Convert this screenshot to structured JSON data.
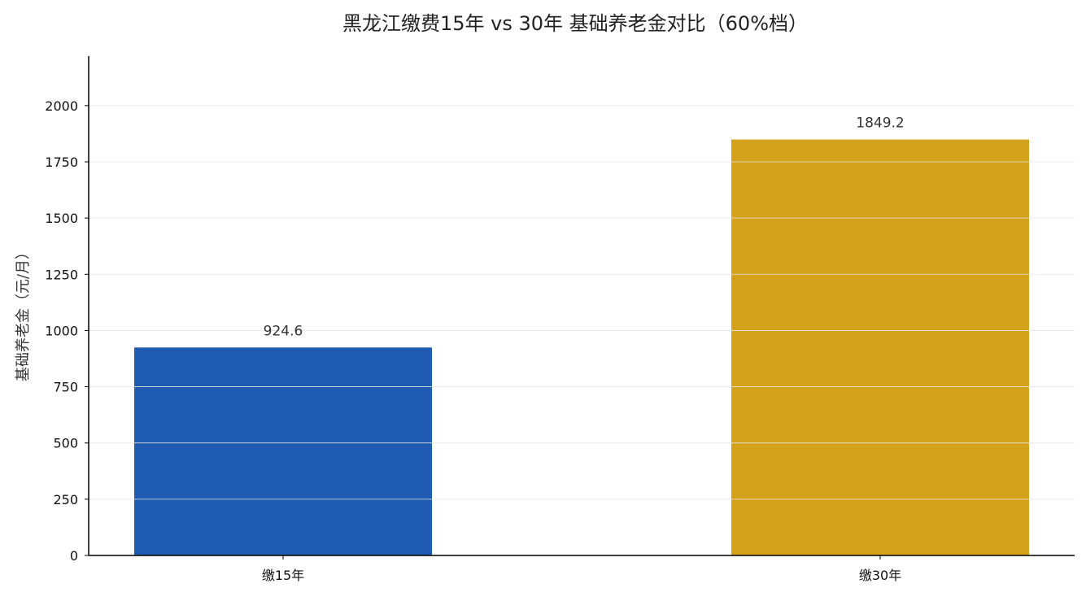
{
  "chart_data": {
    "type": "bar",
    "title": "黑龙江缴费15年 vs 30年 基础养老金对比（60%档）",
    "xlabel": "",
    "ylabel": "基础养老金（元/月）",
    "categories": [
      "缴15年",
      "缴30年"
    ],
    "values": [
      924.6,
      1849.2
    ],
    "value_labels": [
      "924.6",
      "1849.2"
    ],
    "colors": [
      "#1f5bb0",
      "#d4a11b"
    ],
    "ylim": [
      0,
      2220
    ],
    "yticks": [
      0,
      250,
      500,
      750,
      1000,
      1250,
      1500,
      1750,
      2000
    ],
    "ytick_labels": [
      "0",
      "250",
      "500",
      "750",
      "1000",
      "1250",
      "1500",
      "1750",
      "2000"
    ],
    "grid": true,
    "legend": "none"
  }
}
